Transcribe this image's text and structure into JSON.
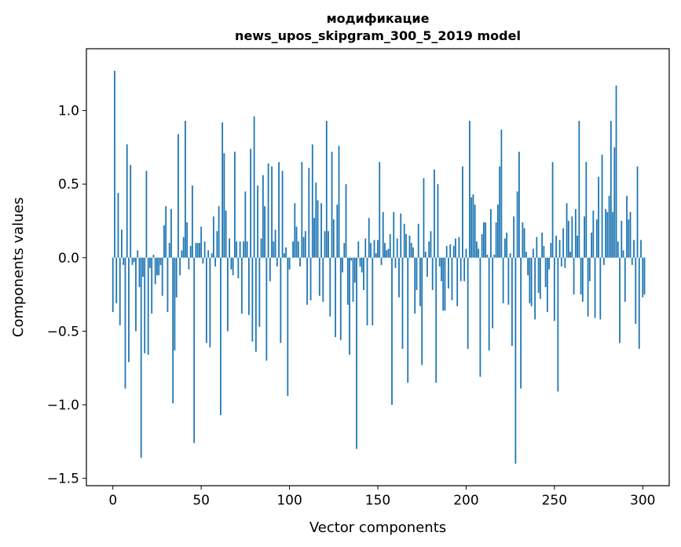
{
  "chart_data": {
    "type": "bar",
    "title_line1": "модификацие",
    "title_line2": "news_upos_skipgram_300_5_2019 model",
    "xlabel": "Vector components",
    "ylabel": "Components values",
    "xlim": [
      -15,
      315
    ],
    "ylim": [
      -1.55,
      1.42
    ],
    "xticks": [
      0,
      50,
      100,
      150,
      200,
      250,
      300
    ],
    "xtick_labels": [
      "0",
      "50",
      "100",
      "150",
      "200",
      "250",
      "300"
    ],
    "yticks": [
      -1.5,
      -1.0,
      -0.5,
      0.0,
      0.5,
      1.0
    ],
    "ytick_labels": [
      "−1.5",
      "−1.0",
      "−0.5",
      "0.0",
      "0.5",
      "1.0"
    ],
    "bar_color": "#1f77b4",
    "values": [
      -0.37,
      1.27,
      -0.31,
      0.44,
      -0.46,
      0.19,
      -0.05,
      -0.89,
      0.77,
      -0.71,
      0.63,
      -0.05,
      -0.03,
      -0.5,
      0.05,
      -0.2,
      -1.36,
      -0.13,
      -0.65,
      0.59,
      -0.66,
      -0.07,
      -0.38,
      0.02,
      -0.18,
      -0.12,
      -0.12,
      -0.05,
      -0.26,
      0.22,
      0.35,
      -0.37,
      0.1,
      0.33,
      -0.99,
      -0.63,
      -0.27,
      0.84,
      -0.12,
      0.05,
      0.14,
      0.93,
      0.24,
      -0.08,
      0.08,
      0.49,
      -1.26,
      0.1,
      0.1,
      0.1,
      0.21,
      -0.04,
      0.11,
      -0.58,
      0.05,
      -0.61,
      0.03,
      0.28,
      -0.06,
      0.18,
      0.35,
      -1.07,
      0.92,
      0.71,
      0.32,
      -0.5,
      0.13,
      -0.08,
      -0.12,
      0.72,
      0.11,
      -0.14,
      0.11,
      -0.38,
      0.11,
      0.45,
      0.11,
      -0.39,
      0.74,
      -0.57,
      0.96,
      -0.64,
      0.49,
      -0.47,
      0.13,
      0.56,
      0.35,
      -0.7,
      0.64,
      -0.16,
      0.62,
      0.11,
      0.19,
      -0.06,
      0.65,
      -0.58,
      0.59,
      0.03,
      0.07,
      -0.94,
      -0.08,
      0.0,
      0.11,
      0.37,
      0.21,
      0.11,
      -0.06,
      0.65,
      0.14,
      0.18,
      -0.32,
      0.61,
      -0.29,
      0.77,
      0.27,
      0.51,
      0.39,
      -0.26,
      0.37,
      -0.3,
      0.18,
      0.93,
      0.18,
      -0.4,
      0.72,
      0.26,
      -0.54,
      0.36,
      0.76,
      -0.56,
      -0.1,
      0.1,
      0.5,
      -0.32,
      -0.66,
      -0.02,
      -0.3,
      -0.17,
      -1.3,
      0.11,
      -0.06,
      -0.1,
      -0.22,
      0.13,
      -0.46,
      0.27,
      0.1,
      -0.46,
      0.12,
      0.03,
      0.12,
      0.65,
      -0.05,
      0.31,
      0.1,
      0.05,
      0.06,
      0.16,
      -1.0,
      0.31,
      -0.07,
      0.13,
      -0.27,
      0.3,
      -0.62,
      0.23,
      0.16,
      -0.85,
      0.15,
      0.1,
      0.07,
      -0.38,
      -0.22,
      0.23,
      -0.33,
      -0.73,
      0.54,
      0.04,
      -0.13,
      0.11,
      0.18,
      -0.22,
      0.6,
      -0.85,
      0.5,
      -0.06,
      -0.16,
      -0.36,
      -0.36,
      0.08,
      -0.21,
      0.09,
      -0.29,
      0.08,
      0.13,
      -0.33,
      0.14,
      -0.16,
      0.62,
      -0.16,
      0.06,
      -0.62,
      0.93,
      0.41,
      0.43,
      0.36,
      0.11,
      0.06,
      -0.81,
      0.16,
      0.24,
      0.24,
      0.02,
      -0.63,
      0.33,
      -0.48,
      0.02,
      0.24,
      0.36,
      0.62,
      0.87,
      -0.31,
      0.13,
      0.17,
      -0.32,
      0.03,
      -0.6,
      0.28,
      -1.4,
      0.45,
      0.72,
      -0.89,
      0.24,
      0.2,
      0.04,
      -0.12,
      -0.31,
      -0.33,
      0.06,
      -0.42,
      0.14,
      -0.24,
      -0.28,
      0.17,
      0.08,
      -0.2,
      -0.37,
      -0.08,
      0.1,
      0.65,
      -0.43,
      0.15,
      -0.91,
      0.12,
      -0.06,
      0.2,
      -0.07,
      0.37,
      0.25,
      0.04,
      0.28,
      -0.25,
      0.33,
      0.15,
      0.93,
      -0.25,
      -0.3,
      0.28,
      0.65,
      -0.4,
      -0.16,
      0.17,
      0.32,
      -0.41,
      0.26,
      0.55,
      -0.42,
      0.7,
      -0.05,
      0.33,
      0.31,
      0.42,
      0.93,
      0.31,
      0.75,
      1.17,
      0.11,
      -0.58,
      0.25,
      0.05,
      -0.3,
      0.42,
      0.26,
      0.31,
      -0.05,
      0.12,
      -0.45,
      0.62,
      -0.62,
      0.12,
      -0.27,
      -0.25
    ]
  }
}
